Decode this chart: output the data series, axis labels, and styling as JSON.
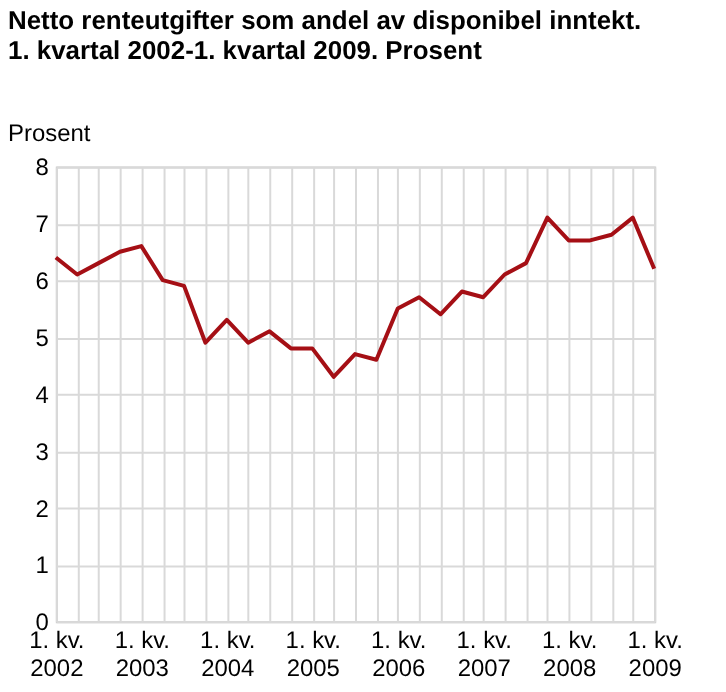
{
  "chart_data": {
    "type": "line",
    "title": "Netto renteutgifter som andel av disponibel inntekt. 1. kvartal 2002-1. kvartal 2009. Prosent",
    "ylabel": "Prosent",
    "categories": [
      "1. kv.\n2002",
      null,
      null,
      null,
      "1. kv.\n2003",
      null,
      null,
      null,
      "1. kv.\n2004",
      null,
      null,
      null,
      "1. kv.\n2005",
      null,
      null,
      null,
      "1. kv.\n2006",
      null,
      null,
      null,
      "1. kv.\n2007",
      null,
      null,
      null,
      "1. kv.\n2008",
      null,
      null,
      null,
      "1. kv.\n2009"
    ],
    "series": [
      {
        "color": "#a50f15",
        "values": [
          6.4,
          6.1,
          6.3,
          6.5,
          6.6,
          6.0,
          5.9,
          4.9,
          5.3,
          4.9,
          5.1,
          4.8,
          4.8,
          4.3,
          4.7,
          4.6,
          5.5,
          5.7,
          5.4,
          5.8,
          5.7,
          6.1,
          6.3,
          7.1,
          6.7,
          6.7,
          6.8,
          7.1,
          6.2
        ]
      }
    ],
    "ylim": [
      0,
      8
    ],
    "yticks": [
      0,
      1,
      2,
      3,
      4,
      5,
      6,
      7,
      8
    ],
    "grid": true,
    "marker": "none",
    "line_style": "solid"
  }
}
